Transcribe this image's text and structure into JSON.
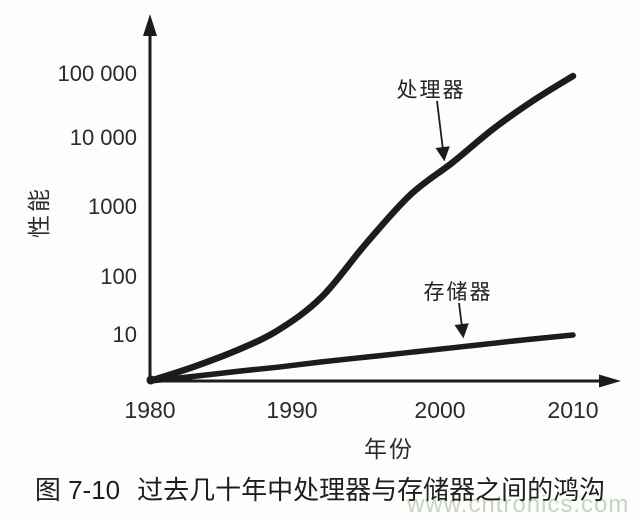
{
  "figure": {
    "label": "图 7-10",
    "title": "过去几十年中处理器与存储器之间的鸿沟"
  },
  "watermark": {
    "text": "www.cntronics.com",
    "color": "#c6d5bd"
  },
  "colors": {
    "ink": "#1d1b1b",
    "text": "#2b2b2b",
    "background": "#fdfdfd"
  },
  "chart_data": {
    "type": "line",
    "title": "",
    "xlabel": "年份",
    "ylabel": "性能",
    "x_ticks": [
      "1980",
      "1990",
      "2000",
      "2010"
    ],
    "x_range": [
      1980,
      2010
    ],
    "y_scale": "log",
    "y_tick_labels": [
      "10",
      "100",
      "1000",
      "10 000",
      "100 000"
    ],
    "y_tick_values": [
      10,
      100,
      1000,
      10000,
      100000
    ],
    "ylim": [
      1,
      100000
    ],
    "grid": false,
    "legend_position": "inline-annotations",
    "series": [
      {
        "name": "处理器",
        "x": [
          1980,
          1983,
          1986,
          1989,
          1992,
          1995,
          1998,
          2001,
          2004,
          2007,
          2010
        ],
        "values": [
          1,
          2,
          4.5,
          12,
          45,
          300,
          1500,
          4500,
          14000,
          40000,
          100000
        ]
      },
      {
        "name": "存储器",
        "x": [
          1980,
          1983,
          1986,
          1989,
          1992,
          1995,
          1998,
          2001,
          2004,
          2007,
          2010
        ],
        "values": [
          1,
          1.25,
          1.6,
          2,
          2.6,
          3.3,
          4.2,
          5.3,
          6.6,
          8.2,
          10
        ]
      }
    ],
    "annotations": [
      {
        "text": "处理器",
        "points_to": "processor-curve"
      },
      {
        "text": "存储器",
        "points_to": "memory-curve"
      }
    ]
  }
}
